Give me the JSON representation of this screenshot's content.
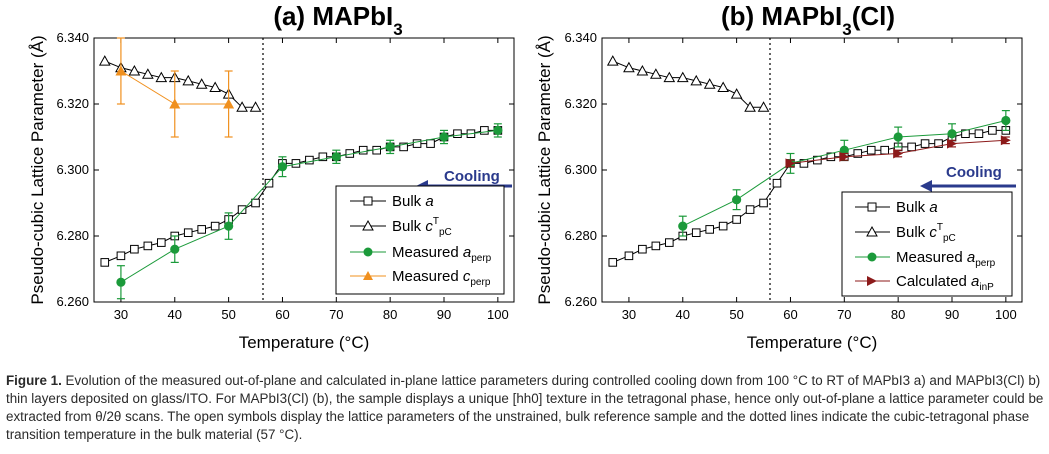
{
  "figure_caption": {
    "label": "Figure 1.",
    "text": "Evolution of the measured out-of-plane and calculated in-plane lattice parameters during controlled cooling down from 100 °C to RT of MAPbI3 a) and MAPbI3(Cl) b) thin layers deposited on glass/ITO. For MAPbI3(Cl) (b), the sample displays a unique [hh0] texture in the tetragonal phase, hence only out-of-plane a lattice parameter could be extracted from θ/2θ scans. The open symbols display the lattice parameters of the unstrained, bulk reference sample and the dotted lines indicate the cubic-tetragonal phase transition temperature in the bulk material (57 °C)."
  },
  "chart_data": [
    {
      "type": "scatter",
      "title": "(a) MAPbI3",
      "xlabel": "Temperature (°C)",
      "ylabel": "Pseudo-cubic Lattice Parameter (Å)",
      "xlim": [
        25,
        103
      ],
      "ylim": [
        6.26,
        6.34
      ],
      "xticks": [
        30,
        40,
        50,
        60,
        70,
        80,
        90,
        100
      ],
      "yticks": [
        "6.260",
        "6.280",
        "6.300",
        "6.320",
        "6.340"
      ],
      "transition_line_x": 57,
      "arrow_label": "Cooling",
      "legend_position": "bottom-right",
      "series": [
        {
          "name": "Bulk a",
          "marker": "open-square",
          "color": "#000000",
          "x": [
            27,
            30,
            32.5,
            35,
            37.5,
            40,
            42.5,
            45,
            47.5,
            50,
            52.5,
            55,
            57.5,
            60,
            62.5,
            65,
            67.5,
            70,
            72.5,
            75,
            77.5,
            80,
            82.5,
            85,
            87.5,
            90,
            92.5,
            95,
            97.5,
            100
          ],
          "y": [
            6.272,
            6.274,
            6.276,
            6.277,
            6.278,
            6.28,
            6.281,
            6.282,
            6.283,
            6.285,
            6.288,
            6.29,
            6.296,
            6.302,
            6.302,
            6.303,
            6.304,
            6.304,
            6.305,
            6.306,
            6.306,
            6.307,
            6.307,
            6.308,
            6.308,
            6.31,
            6.311,
            6.311,
            6.312,
            6.312
          ]
        },
        {
          "name": "Bulk c",
          "marker": "open-triangle",
          "color": "#000000",
          "x": [
            27,
            30,
            32.5,
            35,
            37.5,
            40,
            42.5,
            45,
            47.5,
            50,
            52.5,
            55
          ],
          "y": [
            6.333,
            6.331,
            6.33,
            6.329,
            6.328,
            6.328,
            6.327,
            6.326,
            6.325,
            6.323,
            6.319,
            6.319
          ]
        },
        {
          "name": "Measured a",
          "marker": "filled-circle",
          "color": "#1b9a3a",
          "x": [
            30,
            40,
            50,
            60,
            70,
            80,
            90,
            100
          ],
          "y": [
            6.266,
            6.276,
            6.283,
            6.301,
            6.304,
            6.307,
            6.31,
            6.312
          ],
          "err": [
            0.005,
            0.004,
            0.004,
            0.003,
            0.002,
            0.002,
            0.002,
            0.002
          ]
        },
        {
          "name": "Measured c",
          "marker": "filled-triangle",
          "color": "#f0901e",
          "x": [
            30,
            40,
            50
          ],
          "y": [
            6.33,
            6.32,
            6.32
          ],
          "err": [
            0.01,
            0.01,
            0.01
          ]
        }
      ]
    },
    {
      "type": "scatter",
      "title": "(b) MAPbI3(Cl)",
      "xlabel": "Temperature (°C)",
      "ylabel": "Pseudo-cubic Lattice Parameter (Å)",
      "xlim": [
        25,
        103
      ],
      "ylim": [
        6.26,
        6.34
      ],
      "xticks": [
        30,
        40,
        50,
        60,
        70,
        80,
        90,
        100
      ],
      "yticks": [
        "6.260",
        "6.280",
        "6.300",
        "6.320",
        "6.340"
      ],
      "transition_line_x": 57,
      "arrow_label": "Cooling",
      "legend_position": "bottom-right",
      "series": [
        {
          "name": "Bulk a",
          "marker": "open-square",
          "color": "#000000",
          "x": [
            27,
            30,
            32.5,
            35,
            37.5,
            40,
            42.5,
            45,
            47.5,
            50,
            52.5,
            55,
            57.5,
            60,
            62.5,
            65,
            67.5,
            70,
            72.5,
            75,
            77.5,
            80,
            82.5,
            85,
            87.5,
            90,
            92.5,
            95,
            97.5,
            100
          ],
          "y": [
            6.272,
            6.274,
            6.276,
            6.277,
            6.278,
            6.28,
            6.281,
            6.282,
            6.283,
            6.285,
            6.288,
            6.29,
            6.296,
            6.302,
            6.302,
            6.303,
            6.304,
            6.304,
            6.305,
            6.306,
            6.306,
            6.307,
            6.307,
            6.308,
            6.308,
            6.31,
            6.311,
            6.311,
            6.312,
            6.312
          ]
        },
        {
          "name": "Bulk c",
          "marker": "open-triangle",
          "color": "#000000",
          "x": [
            27,
            30,
            32.5,
            35,
            37.5,
            40,
            42.5,
            45,
            47.5,
            50,
            52.5,
            55
          ],
          "y": [
            6.333,
            6.331,
            6.33,
            6.329,
            6.328,
            6.328,
            6.327,
            6.326,
            6.325,
            6.323,
            6.319,
            6.319
          ]
        },
        {
          "name": "Measured a",
          "marker": "filled-circle",
          "color": "#1b9a3a",
          "x": [
            40,
            50,
            60,
            70,
            80,
            90,
            100
          ],
          "y": [
            6.283,
            6.291,
            6.302,
            6.306,
            6.31,
            6.311,
            6.315
          ],
          "err": [
            0.003,
            0.003,
            0.003,
            0.003,
            0.003,
            0.003,
            0.003
          ]
        },
        {
          "name": "Calculated a",
          "marker": "filled-triangle-right",
          "color": "#8c1a1a",
          "x": [
            60,
            70,
            80,
            90,
            100
          ],
          "y": [
            6.302,
            6.304,
            6.305,
            6.308,
            6.309
          ],
          "err": [
            0.001,
            0.001,
            0.001,
            0.001,
            0.001
          ]
        }
      ]
    }
  ]
}
